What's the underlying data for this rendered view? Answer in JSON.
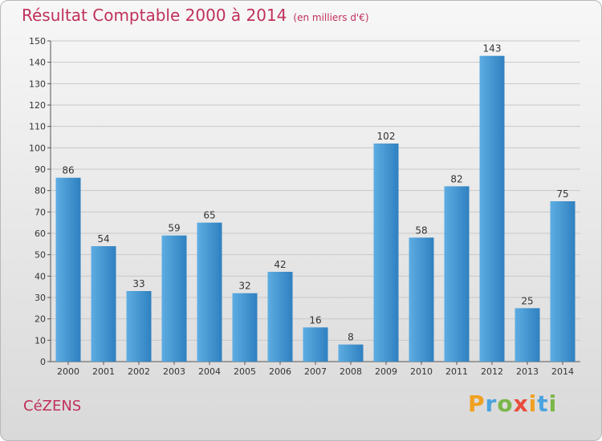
{
  "title": "Résultat Comptable 2000 à 2014",
  "unit": "(en milliers d'€)",
  "place": "CéZENS",
  "brand": {
    "letters": [
      "P",
      "r",
      "o",
      "x",
      "i",
      "t",
      "i"
    ],
    "colors": [
      "#f0a020",
      "#4aa3df",
      "#7ab648",
      "#e84c3d",
      "#f0a020",
      "#4aa3df",
      "#7ab648"
    ]
  },
  "colors": {
    "bar_light": "#5dade2",
    "bar_dark": "#2f80c0",
    "title": "#c0305a",
    "grid": "#c8c8c8"
  },
  "chart_data": {
    "type": "bar",
    "title": "Résultat Comptable 2000 à 2014",
    "xlabel": "",
    "ylabel": "",
    "categories": [
      "2000",
      "2001",
      "2002",
      "2003",
      "2004",
      "2005",
      "2006",
      "2007",
      "2008",
      "2009",
      "2010",
      "2011",
      "2012",
      "2013",
      "2014"
    ],
    "values": [
      86,
      54,
      33,
      59,
      65,
      32,
      42,
      16,
      8,
      102,
      58,
      82,
      143,
      25,
      75
    ],
    "ylim": [
      0,
      150
    ],
    "yticks": [
      0,
      10,
      20,
      30,
      40,
      50,
      60,
      70,
      80,
      90,
      100,
      110,
      120,
      130,
      140,
      150
    ],
    "grid": true
  }
}
